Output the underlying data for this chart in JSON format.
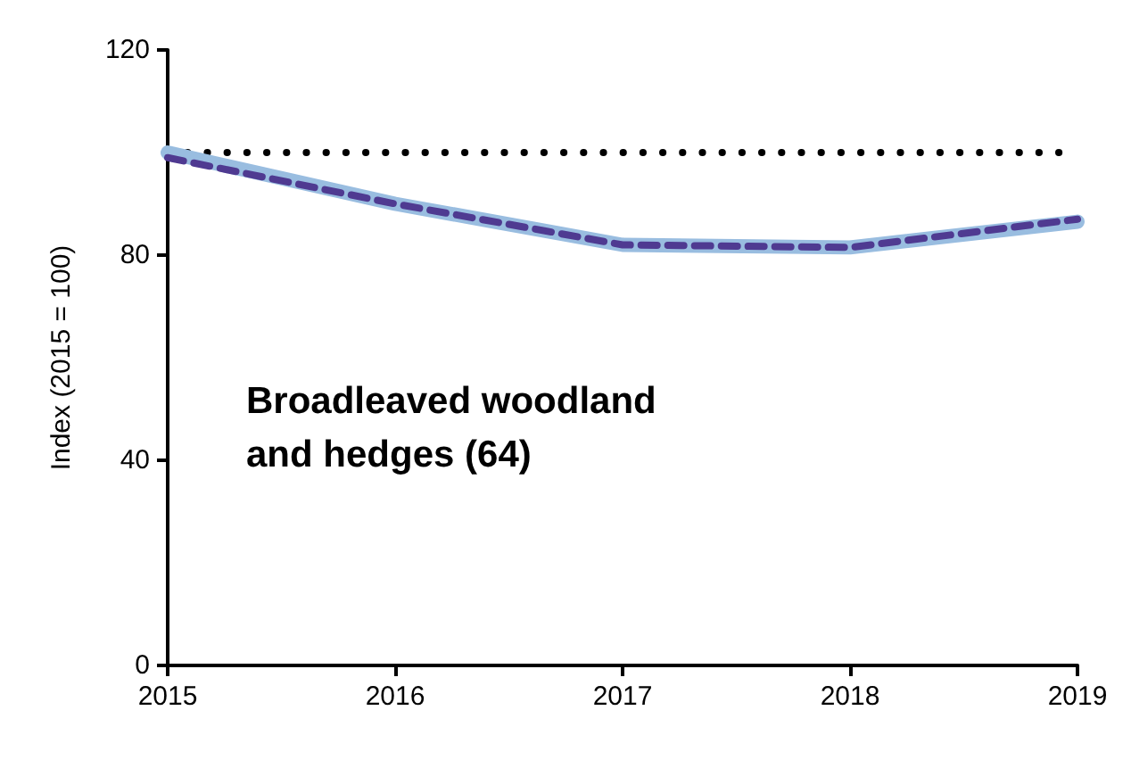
{
  "chart_data": {
    "type": "line",
    "ylabel": "Index (2015 = 100)",
    "x": [
      2015,
      2016,
      2017,
      2018,
      2019
    ],
    "series": [
      {
        "color": "#000000",
        "values": [
          100,
          100,
          100,
          100,
          100
        ],
        "line_style": "dotted"
      },
      {
        "color": "#99bde0",
        "values": [
          100,
          90,
          82,
          81.5,
          86.5
        ],
        "line_style": "solid"
      },
      {
        "color": "#4f3a91",
        "values": [
          99,
          90,
          82,
          81.5,
          87
        ],
        "line_style": "dashed"
      }
    ],
    "xlim": [
      2015,
      2019
    ],
    "xticks": [
      2015,
      2016,
      2017,
      2018,
      2019
    ],
    "ylim": [
      0,
      120
    ],
    "yticks": [
      0,
      40,
      80,
      120
    ],
    "annotations": [
      "Broadleaved woodland\nand hedges (64)"
    ],
    "grid": false,
    "marker": "none"
  }
}
